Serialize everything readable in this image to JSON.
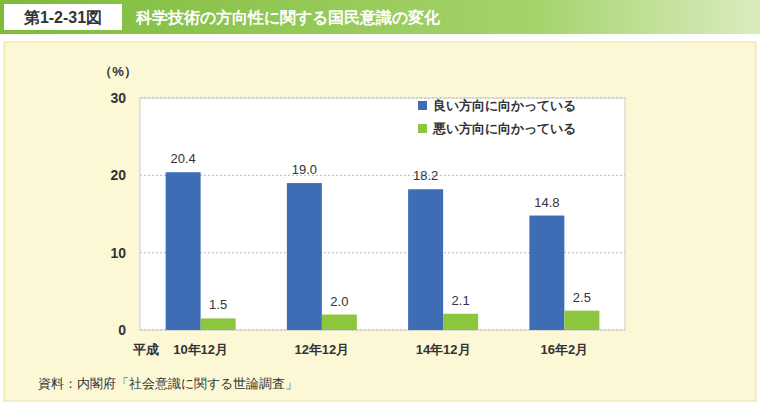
{
  "chart_data": {
    "type": "bar",
    "figure_label": "第1-2-31図",
    "title": "科学技術の方向性に関する国民意識の変化",
    "ylabel": "（%）",
    "xlabel": "平成",
    "categories": [
      "10年12月",
      "12年12月",
      "14年12月",
      "16年2月"
    ],
    "series": [
      {
        "name": "良い方向に向かっている",
        "color": "#3f6db5",
        "values": [
          20.4,
          19.0,
          18.2,
          14.8
        ],
        "value_labels": [
          "20.4",
          "19.0",
          "18.2",
          "14.8"
        ]
      },
      {
        "name": "悪い方向に向かっている",
        "color": "#8cc63e",
        "values": [
          1.5,
          2.0,
          2.1,
          2.5
        ],
        "value_labels": [
          "1.5",
          "2.0",
          "2.1",
          "2.5"
        ]
      }
    ],
    "ylim": [
      0,
      30
    ],
    "yticks": [
      0,
      10,
      20,
      30
    ],
    "grid": true,
    "legend": "upper right",
    "data_labels": true,
    "source": "資料：内閣府「社会意識に関する世論調査」"
  }
}
